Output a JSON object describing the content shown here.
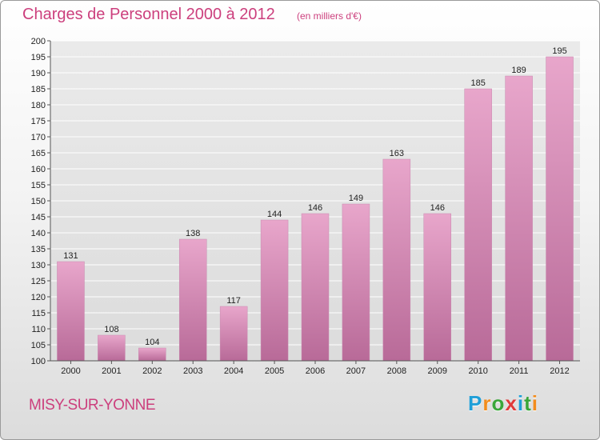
{
  "title": "Charges de Personnel 2000 à 2012",
  "subtitle": "(en milliers d'€)",
  "place": "MISY-SUR-YONNE",
  "brand": {
    "letters": [
      "P",
      "r",
      "o",
      "x",
      "i",
      "t",
      "i"
    ],
    "colors": [
      "#1f9fd8",
      "#f28c1c",
      "#3aa63a",
      "#e03a3a",
      "#1f9fd8",
      "#3aa63a",
      "#f28c1c"
    ]
  },
  "colors": {
    "bar_top": "#e8a6cb",
    "bar_bottom": "#b86a98",
    "accent": "#cc3f7d"
  },
  "chart_data": {
    "type": "bar",
    "categories": [
      "2000",
      "2001",
      "2002",
      "2003",
      "2004",
      "2005",
      "2006",
      "2007",
      "2008",
      "2009",
      "2010",
      "2011",
      "2012"
    ],
    "values": [
      131,
      108,
      104,
      138,
      117,
      144,
      146,
      149,
      163,
      146,
      185,
      189,
      195
    ],
    "title": "Charges de Personnel 2000 à 2012",
    "ylim": [
      100,
      200
    ],
    "yticks": [
      100,
      105,
      110,
      115,
      120,
      125,
      130,
      135,
      140,
      145,
      150,
      155,
      160,
      165,
      170,
      175,
      180,
      185,
      190,
      195,
      200
    ],
    "grid": true
  }
}
